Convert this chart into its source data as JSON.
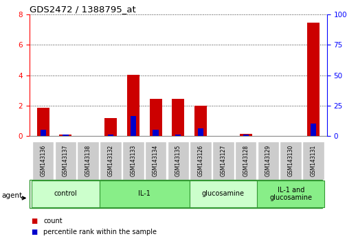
{
  "title": "GDS2472 / 1388795_at",
  "samples": [
    "GSM143136",
    "GSM143137",
    "GSM143138",
    "GSM143132",
    "GSM143133",
    "GSM143134",
    "GSM143135",
    "GSM143126",
    "GSM143127",
    "GSM143128",
    "GSM143129",
    "GSM143130",
    "GSM143131"
  ],
  "count_values": [
    1.85,
    0.1,
    0.0,
    1.2,
    4.05,
    2.45,
    2.45,
    2.0,
    0.0,
    0.15,
    0.0,
    0.0,
    7.45
  ],
  "percentile_values": [
    5.5,
    1.3,
    0.0,
    1.3,
    16.5,
    5.5,
    1.3,
    6.3,
    0.0,
    1.3,
    0.0,
    0.0,
    10.5
  ],
  "groups": [
    {
      "label": "control",
      "indices": [
        0,
        1,
        2
      ],
      "color": "#ccffcc"
    },
    {
      "label": "IL-1",
      "indices": [
        3,
        4,
        5,
        6
      ],
      "color": "#88ee88"
    },
    {
      "label": "glucosamine",
      "indices": [
        7,
        8,
        9
      ],
      "color": "#ccffcc"
    },
    {
      "label": "IL-1 and\nglucosamine",
      "indices": [
        10,
        11,
        12
      ],
      "color": "#88ee88"
    }
  ],
  "ylim_left": [
    0,
    8
  ],
  "ylim_right": [
    0,
    100
  ],
  "yticks_left": [
    0,
    2,
    4,
    6,
    8
  ],
  "yticks_right": [
    0,
    25,
    50,
    75,
    100
  ],
  "count_color": "#cc0000",
  "percentile_color": "#0000cc",
  "tick_bg_color": "#bbbbbb",
  "agent_label": "agent",
  "legend_count": "count",
  "legend_percentile": "percentile rank within the sample",
  "bar_bg_color": "#cccccc",
  "group_border_color": "#339933"
}
